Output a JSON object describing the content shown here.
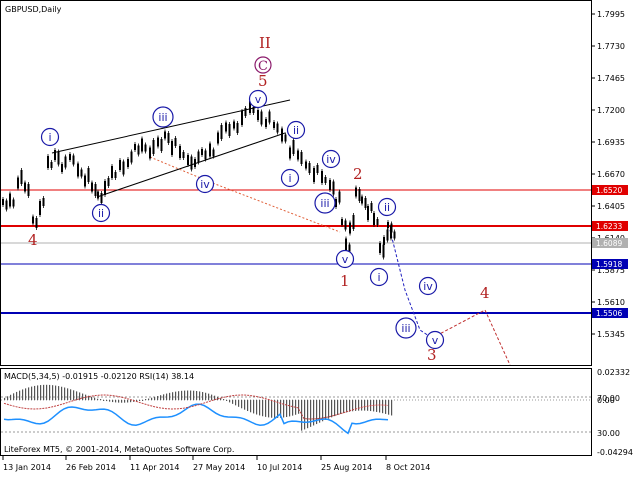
{
  "window": {
    "symbol_title": "GBPUSD,Daily",
    "copyright": "LiteForex MT5, © 2001-2014, MetaQuotes Software Corp."
  },
  "colors": {
    "red_line": "#e00000",
    "blue_line": "#0000b4",
    "gray_line": "#b0b0b0",
    "wave_red": "#b22222",
    "wave_blue": "#1a1aa8",
    "macd_blue": "#1e90ff"
  },
  "price_axis": {
    "ticks": [
      "1.7995",
      "1.7730",
      "1.7465",
      "1.7200",
      "1.6935",
      "1.6670",
      "1.6405",
      "1.6140",
      "1.5875",
      "1.5610",
      "1.5345"
    ],
    "boxes": [
      {
        "value": "1.6520",
        "color": "#e00000",
        "key": "resistance-1"
      },
      {
        "value": "1.6233",
        "color": "#e00000",
        "key": "resistance-2"
      },
      {
        "value": "1.6089",
        "color": "#b0b0b0",
        "key": "current"
      },
      {
        "value": "1.5918",
        "color": "#0000b4",
        "key": "support-1"
      },
      {
        "value": "1.5506",
        "color": "#0000b4",
        "key": "support-2"
      }
    ]
  },
  "indicator": {
    "label": "MACD(5,34,5) -0.01915 -0.02120 RSI(14) 38.14",
    "ticks": [
      "0.02332",
      "70.00",
      "0.00",
      "30.00",
      "-0.04294"
    ]
  },
  "time_axis": {
    "ticks": [
      "13 Jan 2014",
      "26 Feb 2014",
      "11 Apr 2014",
      "27 May 2014",
      "10 Jul 2014",
      "25 Aug 2014",
      "8 Oct 2014"
    ]
  },
  "wave_labels": {
    "red": [
      "II",
      "5",
      "4",
      "2",
      "1",
      "3",
      "4"
    ],
    "blue": [
      "i",
      "ii",
      "iii",
      "iv",
      "v",
      "i",
      "ii",
      "iii",
      "iv",
      "v",
      "i",
      "ii",
      "iii",
      "iv",
      "v"
    ],
    "purple": [
      "C"
    ]
  }
}
